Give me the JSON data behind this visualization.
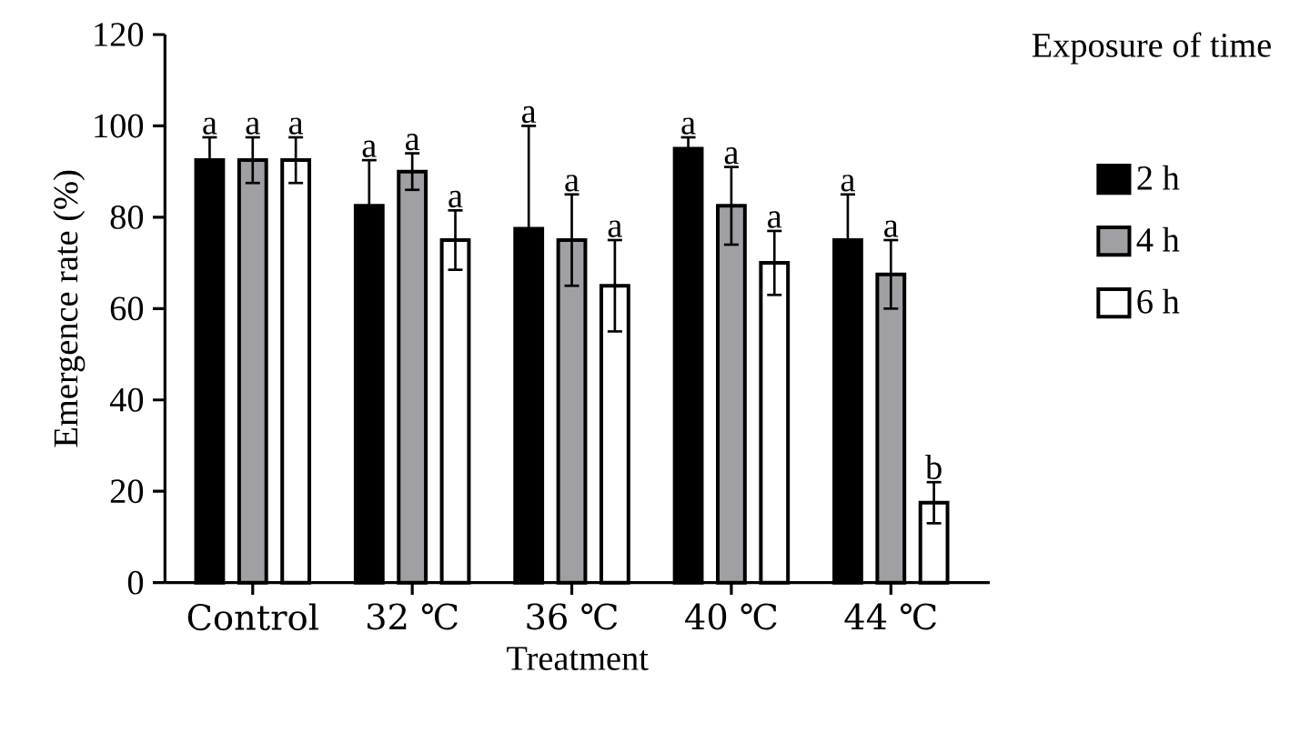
{
  "chart_data": {
    "type": "bar",
    "xlabel": "Treatment",
    "ylabel": "Emergence rate (%)",
    "legend_title": "Exposure of time",
    "categories": [
      "Control",
      "32 ℃",
      "36 ℃",
      "40 ℃",
      "44 ℃"
    ],
    "series": [
      {
        "name": "2 h",
        "color": "#000000",
        "values": [
          92.5,
          82.5,
          77.5,
          95,
          75
        ],
        "errors": [
          5,
          10,
          22.5,
          2.5,
          10
        ],
        "value_labels": [
          "a",
          "a",
          "a",
          "a",
          "a"
        ]
      },
      {
        "name": "4 h",
        "color": "#a0a0a4",
        "values": [
          92.5,
          90,
          75,
          82.5,
          67.5
        ],
        "errors": [
          5,
          4,
          10,
          8.5,
          7.5
        ],
        "value_labels": [
          "a",
          "a",
          "a",
          "a",
          "a"
        ]
      },
      {
        "name": "6 h",
        "color": "#ffffff",
        "values": [
          92.5,
          75,
          65,
          70,
          17.5
        ],
        "errors": [
          5,
          6.5,
          10,
          7,
          4.5
        ],
        "value_labels": [
          "a",
          "a",
          "a",
          "a",
          "b"
        ]
      }
    ],
    "ylim": [
      0,
      120
    ],
    "yticks": [
      0,
      20,
      40,
      60,
      80,
      100,
      120
    ],
    "legend": "right",
    "grid": false
  }
}
